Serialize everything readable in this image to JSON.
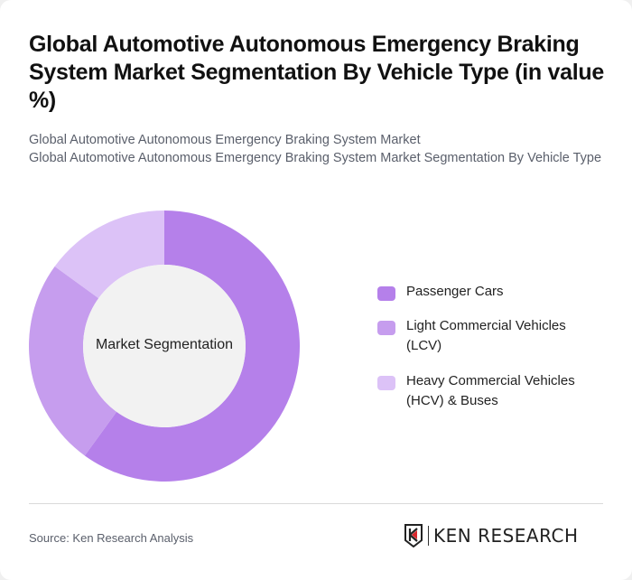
{
  "header": {
    "title": "Global Automotive Autonomous Emergency Braking System Market Segmentation By Vehicle Type (in value %)",
    "subtitle_line1": "Global Automotive Autonomous Emergency Braking System Market",
    "subtitle_line2": "Global Automotive Autonomous Emergency Braking System Market Segmentation By Vehicle Type"
  },
  "chart_data": {
    "type": "pie",
    "variant": "donut",
    "title": "Global Automotive Autonomous Emergency Braking System Market Segmentation By Vehicle Type (in value %)",
    "center_label": "Market Segmentation",
    "categories": [
      "Passenger Cars",
      "Light Commercial Vehicles (LCV)",
      "Heavy Commercial Vehicles (HCV) & Buses"
    ],
    "values": [
      60,
      25,
      15
    ],
    "colors": [
      "#B580EA",
      "#C69DEE",
      "#DCC2F7"
    ],
    "legend_position": "right"
  },
  "legend": [
    {
      "label": "Passenger Cars",
      "color": "#B580EA"
    },
    {
      "label": "Light Commercial Vehicles (LCV)",
      "color": "#C69DEE"
    },
    {
      "label": "Heavy Commercial Vehicles (HCV) & Buses",
      "color": "#DCC2F7"
    }
  ],
  "footer": {
    "source": "Source: Ken Research Analysis",
    "logo_text": "KEN RESEARCH"
  }
}
